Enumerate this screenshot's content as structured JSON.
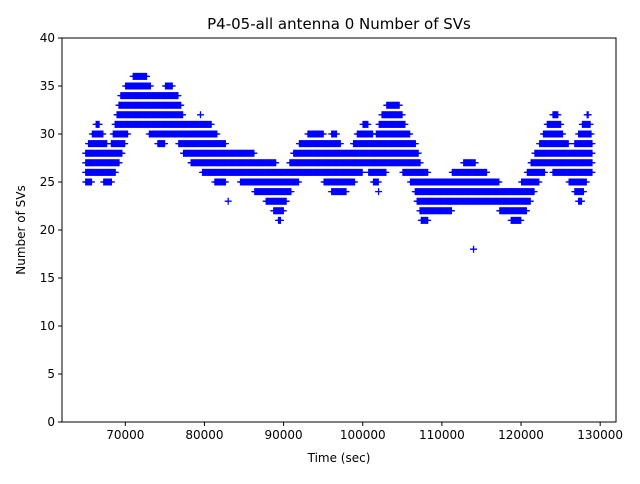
{
  "chart_data": {
    "type": "scatter",
    "title": "P4-05-all antenna 0 Number of SVs",
    "xlabel": "Time (sec)",
    "ylabel": "Number of SVs",
    "xlim": [
      62000,
      132000
    ],
    "ylim": [
      0,
      40
    ],
    "xticks": [
      70000,
      80000,
      90000,
      100000,
      110000,
      120000,
      130000
    ],
    "yticks": [
      0,
      5,
      10,
      15,
      20,
      25,
      30,
      35,
      40
    ],
    "xtick_labels": [
      "70000",
      "80000",
      "90000",
      "100000",
      "110000",
      "120000",
      "130000"
    ],
    "ytick_labels": [
      "0",
      "5",
      "10",
      "15",
      "20",
      "25",
      "30",
      "35",
      "40"
    ],
    "marker": "+",
    "color": "#0000ff",
    "grid": false,
    "series": [
      {
        "name": "Number of SVs",
        "profile_x": [
          65000,
          66500,
          68000,
          69500,
          70500,
          71500,
          72500,
          73500,
          74500,
          75500,
          76500,
          77500,
          79000,
          80500,
          82000,
          83500,
          85500,
          87000,
          88500,
          89500,
          90500,
          91500,
          92500,
          93500,
          94500,
          95500,
          96500,
          97500,
          98500,
          99500,
          100500,
          101500,
          102500,
          103500,
          104500,
          105500,
          106500,
          107500,
          109000,
          110500,
          112000,
          113500,
          115000,
          116500,
          118000,
          119500,
          120500,
          121500,
          122500,
          123500,
          124500,
          125500,
          126500,
          127500,
          128500,
          129000
        ],
        "profile_lo": [
          25,
          26,
          25,
          28,
          31,
          31,
          31,
          30,
          29,
          30,
          30,
          28,
          27,
          26,
          25,
          26,
          25,
          24,
          23,
          21,
          24,
          25,
          26,
          26,
          26,
          25,
          24,
          24,
          25,
          26,
          27,
          25,
          26,
          27,
          27,
          26,
          25,
          21,
          22,
          22,
          23,
          23,
          23,
          23,
          22,
          21,
          22,
          24,
          26,
          27,
          26,
          26,
          25,
          23,
          26,
          26
        ],
        "profile_hi": [
          28,
          31,
          28,
          34,
          35,
          36,
          36,
          34,
          34,
          35,
          34,
          31,
          31,
          31,
          29,
          28,
          28,
          27,
          27,
          26,
          26,
          28,
          29,
          30,
          30,
          29,
          30,
          28,
          28,
          30,
          31,
          29,
          32,
          33,
          33,
          30,
          29,
          26,
          25,
          25,
          26,
          27,
          26,
          25,
          24,
          24,
          25,
          27,
          29,
          31,
          32,
          29,
          28,
          30,
          32,
          29
        ],
        "outliers": [
          [
            79500,
            32
          ],
          [
            114000,
            18
          ],
          [
            83000,
            23
          ],
          [
            102000,
            24
          ],
          [
            107400,
            21
          ]
        ]
      }
    ]
  }
}
